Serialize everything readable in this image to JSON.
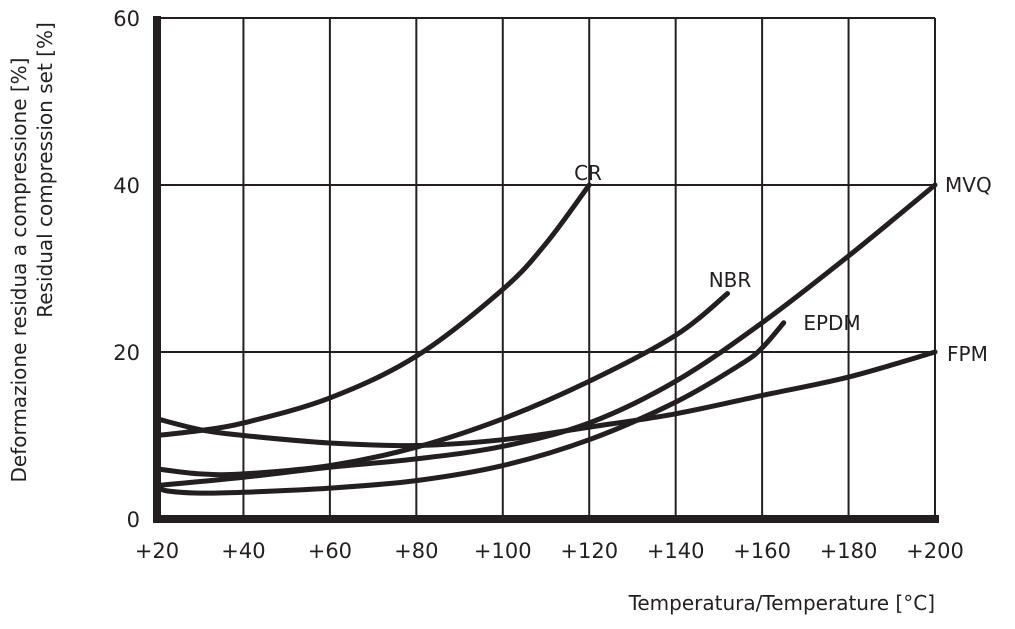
{
  "chart_data": {
    "type": "line",
    "title": "",
    "xlabel": "Temperatura/Temperature [°C]",
    "ylabel": [
      "Deformazione residua a compressione [%]",
      "Residual compression set [%]"
    ],
    "xlim": [
      20,
      200
    ],
    "ylim": [
      0,
      60
    ],
    "grid": true,
    "x_ticks": [
      20,
      40,
      60,
      80,
      100,
      120,
      140,
      160,
      180,
      200
    ],
    "x_tick_labels": [
      "+20",
      "+40",
      "+60",
      "+80",
      "+100",
      "+120",
      "+140",
      "+160",
      "+180",
      "+200"
    ],
    "y_ticks": [
      0,
      20,
      40,
      60
    ],
    "y_tick_labels": [
      "0",
      "20",
      "40",
      "60"
    ],
    "line_color": "#231f20",
    "series": [
      {
        "name": "CR",
        "points": [
          [
            20,
            10
          ],
          [
            30,
            10.6
          ],
          [
            40,
            11.5
          ],
          [
            60,
            14.5
          ],
          [
            80,
            19.5
          ],
          [
            100,
            27.5
          ],
          [
            110,
            33
          ],
          [
            120,
            40
          ]
        ]
      },
      {
        "name": "NBR",
        "points": [
          [
            20,
            6
          ],
          [
            30,
            5.4
          ],
          [
            40,
            5.4
          ],
          [
            60,
            6.4
          ],
          [
            80,
            8.6
          ],
          [
            100,
            12
          ],
          [
            120,
            16.5
          ],
          [
            140,
            22
          ],
          [
            152,
            27
          ]
        ]
      },
      {
        "name": "EPDM",
        "points": [
          [
            20,
            4
          ],
          [
            22,
            3.4
          ],
          [
            30,
            3.1
          ],
          [
            40,
            3.2
          ],
          [
            60,
            3.7
          ],
          [
            80,
            4.6
          ],
          [
            100,
            6.4
          ],
          [
            120,
            9.5
          ],
          [
            140,
            14
          ],
          [
            155,
            18.5
          ],
          [
            160,
            20.5
          ],
          [
            165,
            23.5
          ]
        ]
      },
      {
        "name": "MVQ",
        "points": [
          [
            20,
            4
          ],
          [
            40,
            5
          ],
          [
            60,
            6.2
          ],
          [
            80,
            7.2
          ],
          [
            100,
            8.7
          ],
          [
            120,
            11.5
          ],
          [
            140,
            16.5
          ],
          [
            160,
            23.5
          ],
          [
            180,
            31.5
          ],
          [
            200,
            40
          ]
        ]
      },
      {
        "name": "FPM",
        "points": [
          [
            20,
            12
          ],
          [
            30,
            10.7
          ],
          [
            40,
            10
          ],
          [
            60,
            9.1
          ],
          [
            80,
            8.8
          ],
          [
            100,
            9.5
          ],
          [
            120,
            11
          ],
          [
            140,
            12.6
          ],
          [
            160,
            14.8
          ],
          [
            180,
            17
          ],
          [
            200,
            20
          ]
        ]
      }
    ]
  }
}
